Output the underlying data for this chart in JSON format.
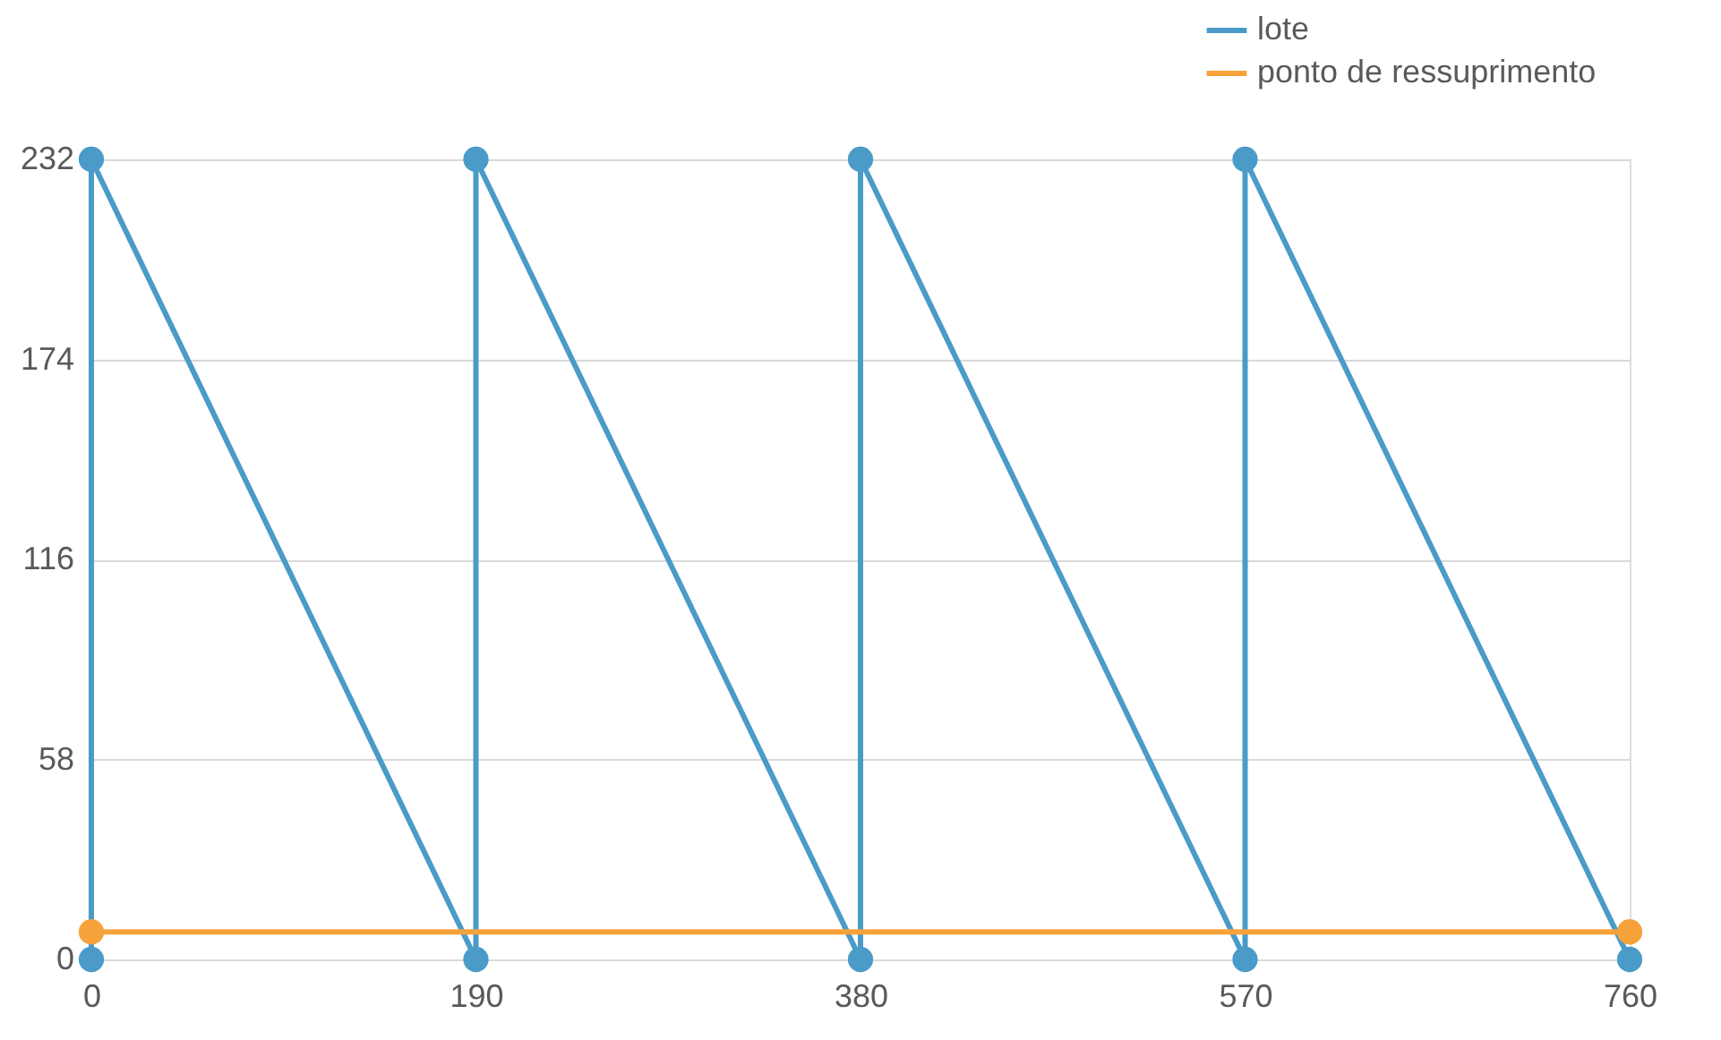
{
  "chart_data": {
    "type": "line",
    "series": [
      {
        "name": "lote",
        "color": "#4a9bc8",
        "x": [
          0,
          0,
          190,
          190,
          380,
          380,
          570,
          570,
          760
        ],
        "values": [
          0,
          232,
          0,
          232,
          0,
          232,
          0,
          232,
          0
        ]
      },
      {
        "name": "ponto de ressuprimento",
        "color": "#f6a23a",
        "x": [
          0,
          760
        ],
        "values": [
          8,
          8
        ]
      }
    ],
    "xlim": [
      0,
      760
    ],
    "xticks": [
      0,
      190,
      380,
      570,
      760
    ],
    "ylim": [
      0,
      232
    ],
    "yticks": [
      0,
      58,
      116,
      174,
      232
    ],
    "grid": "y",
    "legend": "top right",
    "marker": "circle",
    "line_style": "solid"
  }
}
